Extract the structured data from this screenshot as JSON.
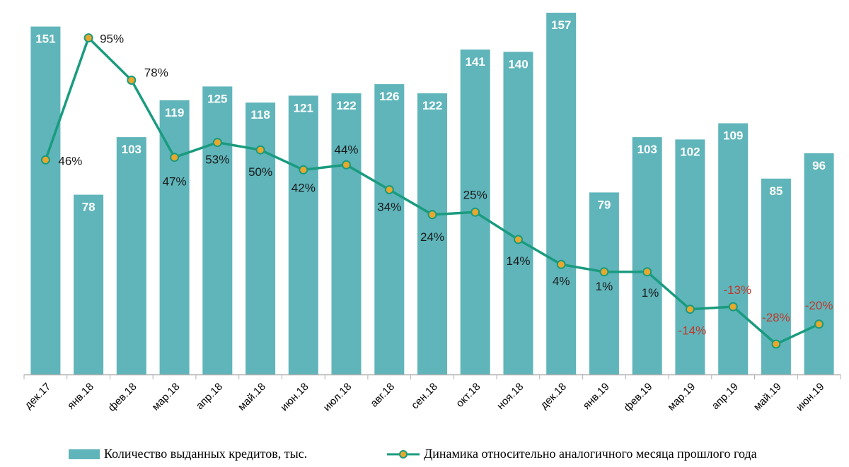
{
  "chart_data": {
    "type": "bar",
    "title": "",
    "xlabel": "",
    "ylabel": "",
    "categories": [
      "дек.17",
      "янв.18",
      "фев.18",
      "мар.18",
      "апр.18",
      "май.18",
      "июн.18",
      "июл.18",
      "авг.18",
      "сен.18",
      "окт.18",
      "ноя.18",
      "дек.18",
      "янв.19",
      "фев.19",
      "мар.19",
      "апр.19",
      "май.19",
      "июн.19"
    ],
    "series": [
      {
        "name": "Количество выданных кредитов, тыс.",
        "type": "bar",
        "values": [
          151,
          78,
          103,
          119,
          125,
          118,
          121,
          122,
          126,
          122,
          141,
          140,
          157,
          79,
          103,
          102,
          109,
          85,
          96
        ],
        "labels": [
          "151",
          "78",
          "103",
          "119",
          "125",
          "118",
          "121",
          "122",
          "126",
          "122",
          "141",
          "140",
          "157",
          "79",
          "103",
          "102",
          "109",
          "85",
          "96"
        ]
      },
      {
        "name": "Динамика относительно аналогичного месяца прошлого года",
        "type": "line",
        "values": [
          46,
          95,
          78,
          47,
          53,
          50,
          42,
          44,
          34,
          24,
          25,
          14,
          4,
          1,
          1,
          -14,
          -13,
          -28,
          -20
        ],
        "labels": [
          "46%",
          "95%",
          "78%",
          "47%",
          "53%",
          "50%",
          "42%",
          "44%",
          "34%",
          "24%",
          "25%",
          "14%",
          "4%",
          "1%",
          "1%",
          "-14%",
          "-13%",
          "-28%",
          "-20%"
        ]
      }
    ],
    "bar_axis_range": [
      0,
      157
    ],
    "line_axis_range": [
      -45,
      100
    ],
    "grid": false,
    "legend_position": "bottom",
    "colors": {
      "bar": "#5fb5ba",
      "line": "#1a9b7f",
      "marker_fill": "#e8a82e",
      "positive_label": "#1a1a1a",
      "negative_label": "#c0392b",
      "axis": "#b0b0b0"
    }
  }
}
